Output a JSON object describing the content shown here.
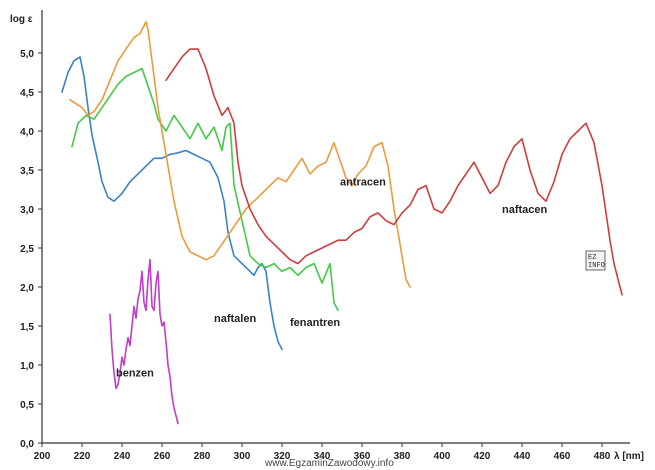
{
  "chart_data": {
    "type": "line",
    "ylabel": "log ε",
    "xlabel": "λ [nm]",
    "xlim": [
      200,
      490
    ],
    "ylim": [
      0,
      5.2
    ],
    "x_ticks": [
      "200",
      "220",
      "240",
      "260",
      "280",
      "300",
      "320",
      "340",
      "360",
      "380",
      "400",
      "420",
      "440",
      "460",
      "480"
    ],
    "y_ticks": [
      "0,0",
      "0,5",
      "1,0",
      "1,5",
      "2,0",
      "2,5",
      "3,0",
      "3,5",
      "4,0",
      "4,5",
      "5,0"
    ],
    "grid": false,
    "series": [
      {
        "name": "benzen",
        "color": "#c03ccc",
        "x": [
          234,
          235,
          236,
          237,
          238,
          239,
          240,
          241,
          242,
          243,
          244,
          245,
          246,
          247,
          248,
          249,
          250,
          251,
          252,
          253,
          254,
          255,
          256,
          257,
          258,
          259,
          260,
          261,
          262,
          263,
          264,
          265,
          266,
          267,
          268
        ],
        "y": [
          1.65,
          1.2,
          0.9,
          0.7,
          0.75,
          0.9,
          1.1,
          1.0,
          1.2,
          1.35,
          1.25,
          1.5,
          1.75,
          1.6,
          1.85,
          1.95,
          2.2,
          1.8,
          1.7,
          2.1,
          2.35,
          1.75,
          1.7,
          2.05,
          2.2,
          1.65,
          1.5,
          1.55,
          1.3,
          1.0,
          0.85,
          0.6,
          0.45,
          0.35,
          0.25
        ]
      },
      {
        "name": "naftalen",
        "color": "#3a82c8",
        "x": [
          210,
          213,
          216,
          219,
          221,
          223,
          225,
          228,
          230,
          233,
          236,
          240,
          244,
          248,
          252,
          256,
          260,
          264,
          268,
          272,
          276,
          280,
          284,
          288,
          291,
          293,
          296,
          300,
          304,
          306,
          308,
          310,
          312,
          314,
          316,
          318,
          320
        ],
        "y": [
          4.5,
          4.75,
          4.9,
          4.95,
          4.7,
          4.3,
          3.95,
          3.6,
          3.35,
          3.15,
          3.1,
          3.2,
          3.35,
          3.45,
          3.55,
          3.65,
          3.65,
          3.7,
          3.72,
          3.75,
          3.7,
          3.65,
          3.6,
          3.4,
          3.1,
          2.7,
          2.4,
          2.3,
          2.2,
          2.15,
          2.25,
          2.3,
          2.2,
          1.8,
          1.5,
          1.3,
          1.2
        ]
      },
      {
        "name": "fenantren",
        "color": "#44c948",
        "x": [
          215,
          218,
          222,
          226,
          230,
          234,
          238,
          242,
          246,
          250,
          252,
          254,
          256,
          258,
          262,
          266,
          270,
          274,
          278,
          282,
          286,
          290,
          292,
          294,
          296,
          300,
          304,
          308,
          312,
          316,
          320,
          324,
          328,
          332,
          336,
          340,
          344,
          346,
          348
        ],
        "y": [
          3.8,
          4.1,
          4.2,
          4.15,
          4.3,
          4.45,
          4.6,
          4.7,
          4.75,
          4.8,
          4.65,
          4.5,
          4.35,
          4.15,
          4.0,
          4.2,
          4.05,
          3.9,
          4.1,
          3.9,
          4.05,
          3.75,
          4.05,
          4.1,
          3.3,
          2.85,
          2.4,
          2.3,
          2.25,
          2.3,
          2.2,
          2.25,
          2.15,
          2.25,
          2.3,
          2.05,
          2.3,
          1.8,
          1.7
        ]
      },
      {
        "name": "antracen",
        "color": "#ee9a3a",
        "x": [
          214,
          217,
          220,
          223,
          226,
          230,
          234,
          238,
          242,
          246,
          249,
          251,
          252,
          253,
          254,
          256,
          258,
          262,
          266,
          270,
          274,
          278,
          282,
          286,
          290,
          294,
          298,
          302,
          306,
          310,
          314,
          318,
          322,
          326,
          330,
          334,
          338,
          342,
          346,
          348,
          350,
          352,
          355,
          358,
          362,
          366,
          370,
          373,
          376,
          378,
          380,
          382,
          384
        ],
        "y": [
          4.4,
          4.35,
          4.3,
          4.2,
          4.25,
          4.4,
          4.65,
          4.9,
          5.05,
          5.2,
          5.25,
          5.35,
          5.4,
          5.3,
          5.1,
          4.7,
          4.3,
          3.7,
          3.1,
          2.65,
          2.45,
          2.4,
          2.35,
          2.4,
          2.55,
          2.7,
          2.85,
          3.0,
          3.1,
          3.2,
          3.3,
          3.4,
          3.35,
          3.5,
          3.65,
          3.45,
          3.55,
          3.6,
          3.85,
          3.7,
          3.55,
          3.4,
          3.3,
          3.45,
          3.55,
          3.8,
          3.85,
          3.55,
          3.0,
          2.7,
          2.4,
          2.1,
          2.0
        ]
      },
      {
        "name": "naftacen",
        "color": "#d03c3c",
        "x": [
          262,
          266,
          270,
          274,
          278,
          282,
          286,
          290,
          293,
          296,
          298,
          300,
          304,
          308,
          312,
          316,
          320,
          324,
          328,
          332,
          336,
          340,
          344,
          348,
          352,
          356,
          360,
          364,
          368,
          372,
          376,
          380,
          384,
          388,
          392,
          396,
          400,
          404,
          408,
          412,
          416,
          420,
          424,
          428,
          432,
          436,
          440,
          444,
          448,
          452,
          456,
          460,
          464,
          468,
          472,
          476,
          480,
          484,
          486,
          488,
          490
        ],
        "y": [
          4.65,
          4.8,
          4.95,
          5.05,
          5.05,
          4.8,
          4.45,
          4.2,
          4.3,
          4.1,
          3.6,
          3.3,
          3.0,
          2.8,
          2.65,
          2.55,
          2.45,
          2.35,
          2.3,
          2.4,
          2.45,
          2.5,
          2.55,
          2.6,
          2.6,
          2.7,
          2.75,
          2.9,
          2.95,
          2.85,
          2.8,
          2.95,
          3.05,
          3.25,
          3.3,
          3.0,
          2.95,
          3.1,
          3.3,
          3.45,
          3.6,
          3.4,
          3.2,
          3.3,
          3.6,
          3.8,
          3.9,
          3.5,
          3.2,
          3.1,
          3.35,
          3.7,
          3.9,
          4.0,
          4.1,
          3.85,
          3.3,
          2.6,
          2.3,
          2.1,
          1.9
        ]
      }
    ],
    "annotations": [
      "benzen",
      "naftalen",
      "fenantren",
      "antracen",
      "naftacen"
    ]
  },
  "watermark": "www.EgzaminZawodowy.info",
  "badge": "EZ INFO"
}
